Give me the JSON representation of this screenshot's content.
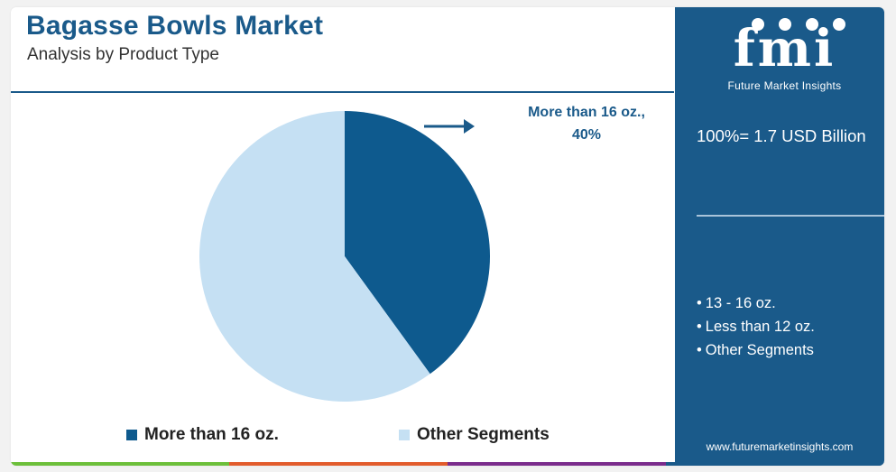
{
  "header": {
    "title": "Bagasse Bowls Market",
    "subtitle": "Analysis by Product Type"
  },
  "callout": {
    "label": "More than 16 oz.,",
    "value": "40%"
  },
  "chart_data": {
    "type": "pie",
    "slices": [
      {
        "name": "More than 16 oz.",
        "value": 40,
        "color": "#0e5a8e"
      },
      {
        "name": "Other Segments",
        "value": 60,
        "color": "#c5e0f3"
      }
    ],
    "legend_position": "bottom",
    "start": "top",
    "direction": "clockwise"
  },
  "legend": [
    {
      "label": "More than 16 oz.",
      "color": "#0e5a8e"
    },
    {
      "label": "Other Segments",
      "color": "#c5e0f3"
    }
  ],
  "sidebar": {
    "logo_letters": "fmi",
    "logo_tagline": "Future Market Insights",
    "total": "100%= 1.7 USD Billion",
    "other_segments": [
      "13 - 16 oz.",
      "Less than 12 oz.",
      "Other Segments"
    ],
    "website": "www.futuremarketinsights.com"
  },
  "colors": {
    "brand": "#1a5a8a",
    "bar": [
      "#6cbf3a",
      "#e25c2c",
      "#7b2c8c",
      "#1a5a8a"
    ]
  }
}
